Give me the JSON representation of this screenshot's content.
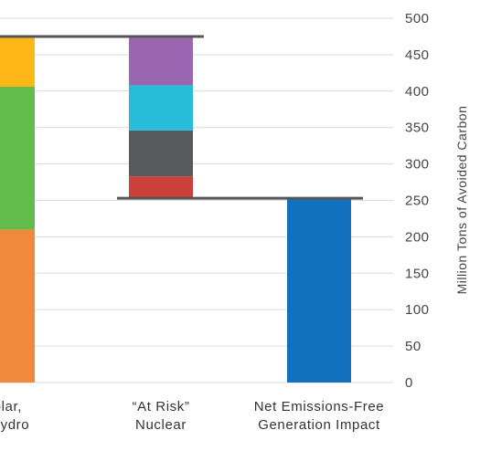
{
  "chart_data": {
    "type": "bar",
    "subtype": "waterfall",
    "ylabel": "Million Tons of Avoided Carbon",
    "ylim": [
      0,
      500
    ],
    "yticks": [
      0,
      50,
      100,
      150,
      200,
      250,
      300,
      350,
      400,
      450,
      500
    ],
    "grid": true,
    "categories": [
      {
        "lines": [
          "Solar,",
          "& Hydro"
        ]
      },
      {
        "lines": [
          "“At Risk”",
          "Nuclear"
        ]
      },
      {
        "lines": [
          "Net Emissions-Free",
          "Generation Impact"
        ]
      }
    ],
    "stacks": [
      {
        "category_index": 0,
        "segments": [
          {
            "from": 0,
            "to": 210,
            "color": "#F08A3A"
          },
          {
            "from": 210,
            "to": 406,
            "color": "#63BC4C"
          },
          {
            "from": 406,
            "to": 473,
            "color": "#FDB716"
          }
        ]
      },
      {
        "category_index": 1,
        "segments": [
          {
            "from": 253,
            "to": 283,
            "color": "#C9413A"
          },
          {
            "from": 283,
            "to": 346,
            "color": "#58595B"
          },
          {
            "from": 346,
            "to": 408,
            "color": "#27BCD8"
          },
          {
            "from": 408,
            "to": 473,
            "color": "#9A66B2"
          }
        ]
      },
      {
        "category_index": 2,
        "segments": [
          {
            "from": 0,
            "to": 253,
            "color": "#1271BE"
          }
        ]
      }
    ],
    "connectors": [
      {
        "value": 475,
        "from_category": 0,
        "to_category": 1
      },
      {
        "value": 253,
        "from_category": 1,
        "to_category": 2
      }
    ]
  },
  "colors": {
    "grid": "#d9d9d9",
    "connector": "#555555",
    "text": "#444444"
  }
}
